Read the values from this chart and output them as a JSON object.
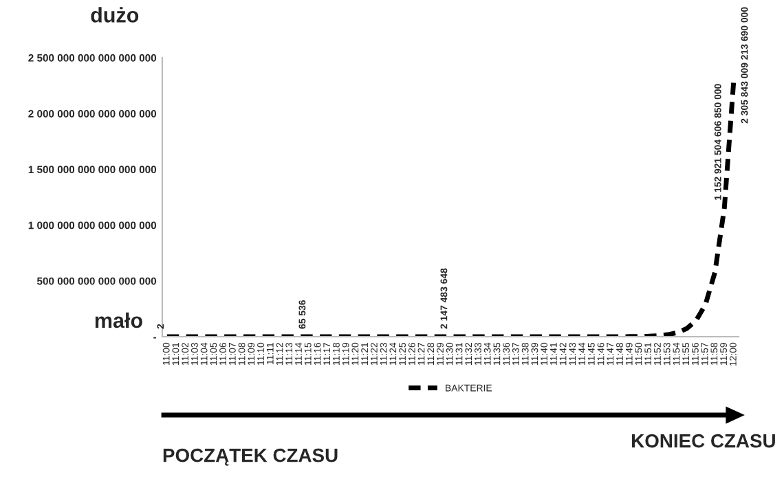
{
  "chart_data": {
    "type": "line",
    "categories": [
      "11:00",
      "11:01",
      "11:02",
      "11:03",
      "11:04",
      "11:05",
      "11:06",
      "11:07",
      "11:08",
      "11:09",
      "11:10",
      "11:11",
      "11:12",
      "11:13",
      "11:14",
      "11:15",
      "11:16",
      "11:17",
      "11:18",
      "11:19",
      "11:20",
      "11:21",
      "11:22",
      "11:23",
      "11:24",
      "11:25",
      "11:26",
      "11:27",
      "11:28",
      "11:29",
      "11:30",
      "11:31",
      "11:32",
      "11:33",
      "11:34",
      "11:35",
      "11:36",
      "11:37",
      "11:38",
      "11:39",
      "11:40",
      "11:41",
      "11:42",
      "11:43",
      "11:44",
      "11:45",
      "11:46",
      "11:47",
      "11:48",
      "11:49",
      "11:50",
      "11:51",
      "11:52",
      "11:53",
      "11:54",
      "11:55",
      "11:56",
      "11:57",
      "11:58",
      "11:59",
      "12:00"
    ],
    "series": [
      {
        "name": "BAKTERIE",
        "color": "#000000",
        "values": [
          2,
          4,
          8,
          16,
          32,
          64,
          128,
          256,
          512,
          1024,
          2048,
          4096,
          8192,
          16384,
          32768,
          65536,
          131072,
          262144,
          524288,
          1048576,
          2097152,
          4194304,
          8388608,
          16777216,
          33554432,
          67108864,
          134217728,
          268435456,
          536870912,
          1073741824,
          2147483648,
          4294967296,
          8589934592,
          17179869184,
          34359738368,
          68719476736,
          137438953472,
          274877906944,
          549755813888,
          1099511627776,
          2199023255552,
          4398046511104,
          8796093022208,
          17592186044416,
          35184372088832,
          70368744177664,
          140737488355328,
          281474976710656,
          562949953421312,
          1125899906842624,
          2251799813685248,
          4503599627370496,
          9007199254740992,
          18014398509481984,
          36028797018963968,
          72057594037927936,
          144115188075855872,
          288230376151711744,
          576460752303423488,
          1152921504606850000,
          2305843009213690000
        ],
        "value_labels": [
          "2",
          null,
          null,
          null,
          null,
          null,
          null,
          null,
          null,
          null,
          null,
          null,
          null,
          null,
          null,
          "65 536",
          null,
          null,
          null,
          null,
          null,
          null,
          null,
          null,
          null,
          null,
          null,
          null,
          null,
          null,
          "2 147 483 648",
          null,
          null,
          null,
          null,
          null,
          null,
          null,
          null,
          null,
          null,
          null,
          null,
          null,
          null,
          null,
          null,
          null,
          null,
          null,
          null,
          null,
          null,
          null,
          null,
          null,
          null,
          null,
          null,
          "1 152 921 504 606 850 000",
          "2 305 843 009 213 690 000"
        ]
      }
    ],
    "ylim": [
      0,
      2500000000000000000
    ],
    "yticks": [
      {
        "value": 0,
        "label": "-"
      },
      {
        "value": 500000000000000000,
        "label": "500 000 000 000 000 000"
      },
      {
        "value": 1000000000000000000,
        "label": "1 000 000 000 000 000 000"
      },
      {
        "value": 1500000000000000000,
        "label": "1 500 000 000 000 000 000"
      },
      {
        "value": 2000000000000000000,
        "label": "2 000 000 000 000 000 000"
      },
      {
        "value": 2500000000000000000,
        "label": "2 500 000 000 000 000 000"
      }
    ],
    "line_style": "dashed",
    "marker": "none",
    "grid": false,
    "legend": "bottom",
    "annotations": [
      "dużo",
      "mało",
      "POCZĄTEK CZASU",
      "KONIEC CZASU"
    ]
  }
}
